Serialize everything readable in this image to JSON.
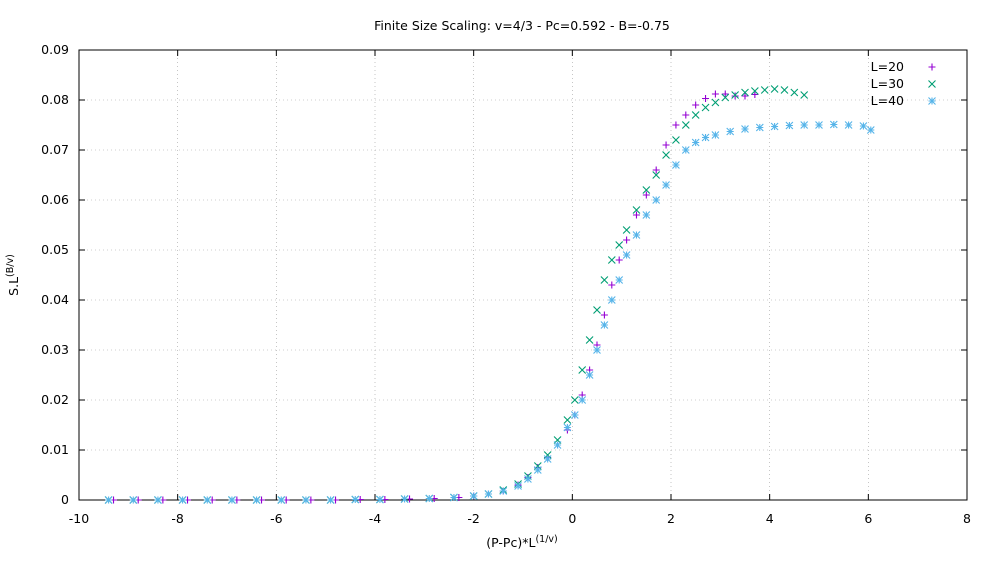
{
  "chart_data": {
    "type": "scatter",
    "title": "Finite Size Scaling: v=4/3 - Pc=0.592 - B=-0.75",
    "xlabel": {
      "base": "(P-Pc)*L",
      "sup": "(1/v)"
    },
    "ylabel": {
      "base": "S.L",
      "sup": "(B/v)"
    },
    "xlim": [
      -10,
      8
    ],
    "ylim": [
      0,
      0.09
    ],
    "x_ticks": [
      "-10",
      "-8",
      "-6",
      "-4",
      "-2",
      "0",
      "2",
      "4",
      "6",
      "8"
    ],
    "y_ticks": [
      "0",
      "0.01",
      "0.02",
      "0.03",
      "0.04",
      "0.05",
      "0.06",
      "0.07",
      "0.08",
      "0.09"
    ],
    "grid": true,
    "legend_position": "top-right",
    "series": [
      {
        "name": "L=20",
        "marker": "plus",
        "color": "#9400d3",
        "points": [
          [
            -9.3,
            0
          ],
          [
            -8.8,
            0
          ],
          [
            -8.3,
            0
          ],
          [
            -7.8,
            0
          ],
          [
            -7.3,
            0
          ],
          [
            -6.8,
            0
          ],
          [
            -6.3,
            0
          ],
          [
            -5.8,
            0
          ],
          [
            -5.3,
            0
          ],
          [
            -4.8,
            0
          ],
          [
            -4.3,
            0.0001
          ],
          [
            -3.8,
            0.0001
          ],
          [
            -3.3,
            0.0002
          ],
          [
            -2.8,
            0.0003
          ],
          [
            -2.3,
            0.0005
          ],
          [
            -2.0,
            0.0008
          ],
          [
            -1.7,
            0.0012
          ],
          [
            -1.4,
            0.0018
          ],
          [
            -1.1,
            0.003
          ],
          [
            -0.9,
            0.0045
          ],
          [
            -0.7,
            0.0065
          ],
          [
            -0.5,
            0.0085
          ],
          [
            -0.3,
            0.011
          ],
          [
            -0.1,
            0.014
          ],
          [
            0.05,
            0.017
          ],
          [
            0.2,
            0.021
          ],
          [
            0.35,
            0.026
          ],
          [
            0.5,
            0.031
          ],
          [
            0.65,
            0.037
          ],
          [
            0.8,
            0.043
          ],
          [
            0.95,
            0.048
          ],
          [
            1.1,
            0.052
          ],
          [
            1.3,
            0.057
          ],
          [
            1.5,
            0.061
          ],
          [
            1.7,
            0.066
          ],
          [
            1.9,
            0.071
          ],
          [
            2.1,
            0.075
          ],
          [
            2.3,
            0.077
          ],
          [
            2.5,
            0.079
          ],
          [
            2.7,
            0.0803
          ],
          [
            2.9,
            0.0812
          ],
          [
            3.1,
            0.0812
          ],
          [
            3.3,
            0.0808
          ],
          [
            3.5,
            0.0808
          ],
          [
            3.7,
            0.0811
          ]
        ]
      },
      {
        "name": "L=30",
        "marker": "cross",
        "color": "#009e73",
        "points": [
          [
            -9.4,
            0
          ],
          [
            -8.9,
            0
          ],
          [
            -8.4,
            0
          ],
          [
            -7.9,
            0
          ],
          [
            -7.4,
            0
          ],
          [
            -6.9,
            0
          ],
          [
            -6.4,
            0
          ],
          [
            -5.9,
            0
          ],
          [
            -5.4,
            0
          ],
          [
            -4.9,
            0
          ],
          [
            -4.4,
            0.0001
          ],
          [
            -3.9,
            0.0001
          ],
          [
            -3.4,
            0.0002
          ],
          [
            -2.9,
            0.0003
          ],
          [
            -2.4,
            0.0005
          ],
          [
            -2.0,
            0.0008
          ],
          [
            -1.7,
            0.0012
          ],
          [
            -1.4,
            0.002
          ],
          [
            -1.1,
            0.0032
          ],
          [
            -0.9,
            0.0048
          ],
          [
            -0.7,
            0.0068
          ],
          [
            -0.5,
            0.009
          ],
          [
            -0.3,
            0.012
          ],
          [
            -0.1,
            0.016
          ],
          [
            0.05,
            0.02
          ],
          [
            0.2,
            0.026
          ],
          [
            0.35,
            0.032
          ],
          [
            0.5,
            0.038
          ],
          [
            0.65,
            0.044
          ],
          [
            0.8,
            0.048
          ],
          [
            0.95,
            0.051
          ],
          [
            1.1,
            0.054
          ],
          [
            1.3,
            0.058
          ],
          [
            1.5,
            0.062
          ],
          [
            1.7,
            0.065
          ],
          [
            1.9,
            0.069
          ],
          [
            2.1,
            0.072
          ],
          [
            2.3,
            0.075
          ],
          [
            2.5,
            0.077
          ],
          [
            2.7,
            0.0785
          ],
          [
            2.9,
            0.0795
          ],
          [
            3.1,
            0.0805
          ],
          [
            3.3,
            0.081
          ],
          [
            3.5,
            0.0815
          ],
          [
            3.7,
            0.0818
          ],
          [
            3.9,
            0.082
          ],
          [
            4.1,
            0.0822
          ],
          [
            4.3,
            0.082
          ],
          [
            4.5,
            0.0815
          ],
          [
            4.7,
            0.081
          ]
        ]
      },
      {
        "name": "L=40",
        "marker": "star",
        "color": "#56b4e9",
        "points": [
          [
            -9.4,
            0
          ],
          [
            -8.9,
            0
          ],
          [
            -8.4,
            0
          ],
          [
            -7.9,
            0
          ],
          [
            -7.4,
            0
          ],
          [
            -6.9,
            0
          ],
          [
            -6.4,
            0
          ],
          [
            -5.9,
            0
          ],
          [
            -5.4,
            0
          ],
          [
            -4.9,
            0
          ],
          [
            -4.4,
            0.0001
          ],
          [
            -3.9,
            0.0001
          ],
          [
            -3.4,
            0.0002
          ],
          [
            -2.9,
            0.0003
          ],
          [
            -2.4,
            0.0005
          ],
          [
            -2.0,
            0.0008
          ],
          [
            -1.7,
            0.0012
          ],
          [
            -1.4,
            0.0018
          ],
          [
            -1.1,
            0.0028
          ],
          [
            -0.9,
            0.0042
          ],
          [
            -0.7,
            0.006
          ],
          [
            -0.5,
            0.0082
          ],
          [
            -0.3,
            0.011
          ],
          [
            -0.1,
            0.0145
          ],
          [
            0.05,
            0.017
          ],
          [
            0.2,
            0.02
          ],
          [
            0.35,
            0.025
          ],
          [
            0.5,
            0.03
          ],
          [
            0.65,
            0.035
          ],
          [
            0.8,
            0.04
          ],
          [
            0.95,
            0.044
          ],
          [
            1.1,
            0.049
          ],
          [
            1.3,
            0.053
          ],
          [
            1.5,
            0.057
          ],
          [
            1.7,
            0.06
          ],
          [
            1.9,
            0.063
          ],
          [
            2.1,
            0.067
          ],
          [
            2.3,
            0.07
          ],
          [
            2.5,
            0.0715
          ],
          [
            2.7,
            0.0725
          ],
          [
            2.9,
            0.073
          ],
          [
            3.2,
            0.0737
          ],
          [
            3.5,
            0.0742
          ],
          [
            3.8,
            0.0745
          ],
          [
            4.1,
            0.0747
          ],
          [
            4.4,
            0.0749
          ],
          [
            4.7,
            0.075
          ],
          [
            5.0,
            0.075
          ],
          [
            5.3,
            0.0751
          ],
          [
            5.6,
            0.075
          ],
          [
            5.9,
            0.0748
          ],
          [
            6.05,
            0.074
          ]
        ]
      }
    ]
  }
}
